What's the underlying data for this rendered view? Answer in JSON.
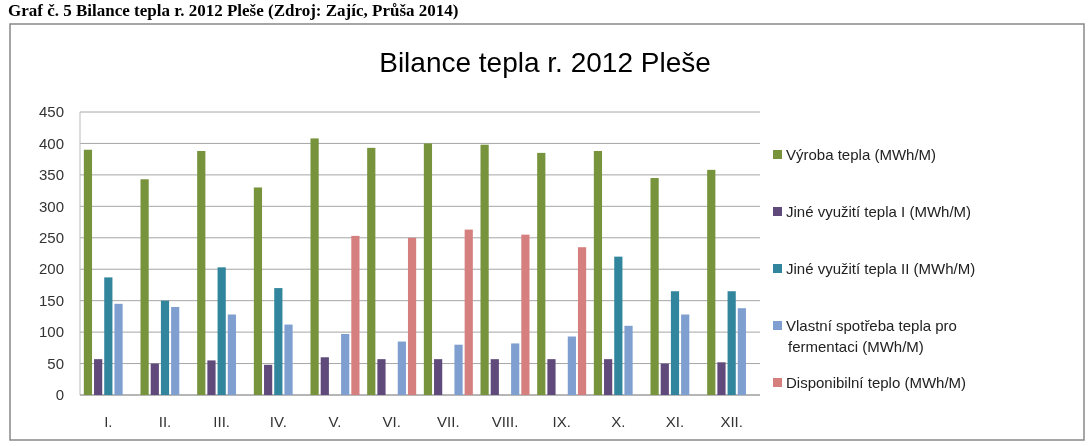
{
  "chart_data": {
    "type": "bar",
    "title": "Bilance tepla r. 2012 Pleše",
    "annotations": [
      "Graf č. 5 Bilance tepla r. 2012 Pleše (Zdroj: Zajíc, Průša 2014)"
    ],
    "categories": [
      "I.",
      "II.",
      "III.",
      "IV.",
      "V.",
      "VI.",
      "VII.",
      "VIII.",
      "IX.",
      "X.",
      "XI.",
      "XII."
    ],
    "series": [
      {
        "name": "Výroba tepla (MWh/M)",
        "color": "#77933c",
        "values": [
          390,
          343,
          388,
          330,
          408,
          393,
          400,
          398,
          385,
          388,
          345,
          358
        ]
      },
      {
        "name": "Jiné využití tepla I (MWh/M)",
        "color": "#604a7b",
        "values": [
          57,
          50,
          55,
          48,
          60,
          57,
          57,
          57,
          57,
          57,
          50,
          52
        ]
      },
      {
        "name": "Jiné využití tepla II (MWh/M)",
        "color": "#31859c",
        "values": [
          187,
          150,
          203,
          170,
          null,
          null,
          null,
          null,
          null,
          220,
          165,
          165
        ]
      },
      {
        "name": "Vlastní spotřeba tepla pro fermentaci (MWh/M)",
        "color": "#7f9fd0",
        "values": [
          145,
          140,
          128,
          112,
          97,
          85,
          80,
          82,
          93,
          110,
          128,
          138
        ]
      },
      {
        "name": "Disponibilní teplo (MWh/M)",
        "color": "#d67f7f",
        "values": [
          null,
          null,
          null,
          null,
          253,
          250,
          263,
          255,
          235,
          null,
          null,
          null
        ]
      }
    ],
    "ylim": [
      0,
      450
    ],
    "yticks": [
      0,
      50,
      100,
      150,
      200,
      250,
      300,
      350,
      400,
      450
    ],
    "grid": "y",
    "legend": "right"
  }
}
